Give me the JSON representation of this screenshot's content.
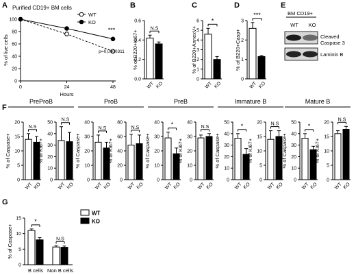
{
  "chart_data": [
    {
      "panel": "A",
      "type": "line",
      "title": "Purified CD19+ BM cells",
      "xlabel": "Hours",
      "ylabel": "% of live cells",
      "x": [
        0,
        24,
        48
      ],
      "xticks": [
        "0",
        "24",
        "48"
      ],
      "ylim": [
        0,
        100
      ],
      "yticks": [
        "0",
        "20",
        "40",
        "60",
        "80",
        "100"
      ],
      "series": [
        {
          "name": "WT",
          "values": [
            100,
            76,
            48
          ],
          "errors": [
            1,
            3,
            2
          ],
          "marker": "open"
        },
        {
          "name": "KO",
          "values": [
            100,
            85,
            68
          ],
          "errors": [
            1,
            2,
            2
          ],
          "marker": "filled"
        }
      ],
      "annotations": [
        "***",
        "p=0,0000311"
      ]
    },
    {
      "panel": "B",
      "type": "bar",
      "ylabel": "% of B220+Ki67+",
      "categories": [
        "WT",
        "KO"
      ],
      "values": [
        0.42,
        0.36
      ],
      "errors": [
        0.03,
        0.02
      ],
      "ylim": [
        0,
        0.6
      ],
      "yticks": [
        "0.0",
        "0.2",
        "0.4",
        "0.6"
      ],
      "significance": "N.S"
    },
    {
      "panel": "C",
      "type": "bar",
      "ylabel": "% of B220+AnnexV+",
      "categories": [
        "WT",
        "KO"
      ],
      "values": [
        4.6,
        2.0
      ],
      "errors": [
        0.6,
        0.3
      ],
      "ylim": [
        0,
        6
      ],
      "yticks": [
        "0",
        "1",
        "2",
        "3",
        "4",
        "5",
        "6"
      ],
      "significance": "*"
    },
    {
      "panel": "D",
      "type": "bar",
      "ylabel": "% of B220+Casp+",
      "categories": [
        "WT",
        "KO"
      ],
      "values": [
        2.6,
        1.15
      ],
      "errors": [
        0.3,
        0.05
      ],
      "ylim": [
        0,
        3
      ],
      "yticks": [
        "0",
        "1",
        "2",
        "3"
      ],
      "significance": "***"
    },
    {
      "panel": "F",
      "type": "bar",
      "group": "PreProB",
      "ylabel": "% of Caspase+",
      "categories": [
        "WT",
        "KO"
      ],
      "values": [
        14,
        13
      ],
      "errors": [
        2,
        2
      ],
      "ylim": [
        0,
        20
      ],
      "yticks": [
        "0",
        "5",
        "10",
        "15",
        "20"
      ],
      "significance": "N.S"
    },
    {
      "panel": "F",
      "type": "bar",
      "group": "PreProB",
      "ylabel": "% of Ki67+",
      "categories": [
        "WT",
        "KO"
      ],
      "values": [
        34,
        33
      ],
      "errors": [
        12,
        8
      ],
      "ylim": [
        0,
        50
      ],
      "yticks": [
        "0",
        "10",
        "20",
        "30",
        "40",
        "50"
      ],
      "significance": "N.S"
    },
    {
      "panel": "F",
      "type": "bar",
      "group": "ProB",
      "ylabel": "% of Caspase+",
      "categories": [
        "WT",
        "KO"
      ],
      "values": [
        26,
        22
      ],
      "errors": [
        5,
        4
      ],
      "ylim": [
        0,
        40
      ],
      "yticks": [
        "0",
        "10",
        "20",
        "30",
        "40"
      ],
      "significance": "N.S"
    },
    {
      "panel": "F",
      "type": "bar",
      "group": "ProB",
      "ylabel": "% of Ki67+",
      "categories": [
        "WT",
        "KO"
      ],
      "values": [
        48,
        50
      ],
      "errors": [
        15,
        12
      ],
      "ylim": [
        0,
        80
      ],
      "yticks": [
        "0",
        "20",
        "40",
        "60",
        "80"
      ],
      "significance": "N.S"
    },
    {
      "panel": "F",
      "type": "bar",
      "group": "PreB",
      "ylabel": "% of Caspase+",
      "categories": [
        "WT",
        "KO"
      ],
      "values": [
        29,
        18
      ],
      "errors": [
        4,
        4
      ],
      "ylim": [
        0,
        40
      ],
      "yticks": [
        "0",
        "10",
        "20",
        "30",
        "40"
      ],
      "significance": "*"
    },
    {
      "panel": "F",
      "type": "bar",
      "group": "PreB",
      "ylabel": "% of Ki67+",
      "categories": [
        "WT",
        "KO"
      ],
      "values": [
        29,
        30
      ],
      "errors": [
        2,
        2
      ],
      "ylim": [
        0,
        40
      ],
      "yticks": [
        "0",
        "10",
        "20",
        "30",
        "40"
      ],
      "significance": "N.S"
    },
    {
      "panel": "F",
      "type": "bar",
      "group": "Immature B",
      "ylabel": "% of Caspase+",
      "categories": [
        "WT",
        "KO"
      ],
      "values": [
        36,
        22
      ],
      "errors": [
        4,
        5
      ],
      "ylim": [
        0,
        50
      ],
      "yticks": [
        "0",
        "10",
        "20",
        "30",
        "40",
        "50"
      ],
      "significance": "*"
    },
    {
      "panel": "F",
      "type": "bar",
      "group": "Immature B",
      "ylabel": "% of Ki67+",
      "categories": [
        "WT",
        "KO"
      ],
      "values": [
        14,
        15
      ],
      "errors": [
        3,
        2
      ],
      "ylim": [
        0,
        20
      ],
      "yticks": [
        "0",
        "5",
        "10",
        "15",
        "20"
      ],
      "significance": "N.S"
    },
    {
      "panel": "F",
      "type": "bar",
      "group": "Mature B",
      "ylabel": "% of Caspase+",
      "categories": [
        "WT",
        "KO"
      ],
      "values": [
        36,
        26
      ],
      "errors": [
        4,
        3
      ],
      "ylim": [
        0,
        50
      ],
      "yticks": [
        "0",
        "10",
        "20",
        "30",
        "40",
        "50"
      ],
      "significance": "*"
    },
    {
      "panel": "F",
      "type": "bar",
      "group": "Mature B",
      "ylabel": "% of Ki67+",
      "categories": [
        "WT",
        "KO"
      ],
      "values": [
        16,
        17.5
      ],
      "errors": [
        1,
        1
      ],
      "ylim": [
        0,
        20
      ],
      "yticks": [
        "0",
        "5",
        "10",
        "15",
        "20"
      ],
      "significance": "N.S"
    },
    {
      "panel": "G",
      "type": "bar",
      "ylabel": "% of Caspase+",
      "categories": [
        "B cells",
        "Non B cells"
      ],
      "series": [
        {
          "name": "WT",
          "values": [
            11,
            5.7
          ],
          "errors": [
            0.5,
            0.4
          ]
        },
        {
          "name": "KO",
          "values": [
            8,
            5.6
          ],
          "errors": [
            0.7,
            0.4
          ]
        }
      ],
      "ylim": [
        0,
        15
      ],
      "yticks": [
        "0",
        "5",
        "10",
        "15"
      ],
      "significance": [
        "*",
        "N.S"
      ]
    }
  ],
  "blot": {
    "panel": "E",
    "header": "BM CD19+",
    "lanes": [
      "WT",
      "KO"
    ],
    "bands": [
      "Cleaved Caspase 3",
      "Laminin B"
    ],
    "intensity": [
      [
        0.95,
        0.55
      ],
      [
        0.9,
        0.9
      ]
    ]
  },
  "panel_letters": [
    "A",
    "B",
    "C",
    "D",
    "E",
    "F",
    "G"
  ],
  "group_titles": [
    "PreProB",
    "ProB",
    "PreB",
    "Immature B",
    "Mature B"
  ],
  "colors": {
    "wt_fill": "#ffffff",
    "ko_fill": "#000000",
    "axis": "#000000",
    "blot_band": "#111111",
    "blot_bg": "#d8d8d8"
  }
}
